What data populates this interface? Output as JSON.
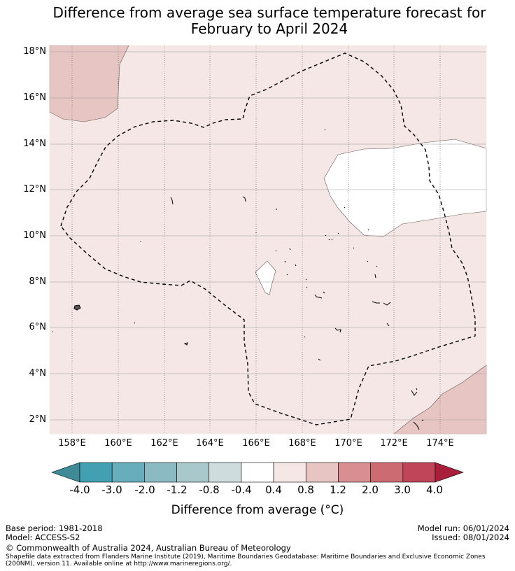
{
  "title": {
    "line1": "Difference from average sea surface temperature forecast for",
    "line2": "February to April 2024"
  },
  "map": {
    "lon_ticks": [
      "158°E",
      "160°E",
      "162°E",
      "164°E",
      "166°E",
      "168°E",
      "170°E",
      "172°E",
      "174°E"
    ],
    "lat_ticks": [
      "18°N",
      "16°N",
      "14°N",
      "12°N",
      "10°N",
      "8°N",
      "6°N",
      "4°N",
      "2°N"
    ],
    "background_class_color": "#f4e7e6",
    "boundary_style": "dashed"
  },
  "colorbar": {
    "tick_labels": [
      "-4.0",
      "-3.0",
      "-2.0",
      "-1.2",
      "-0.8",
      "-0.4",
      "0.4",
      "0.8",
      "1.2",
      "2.0",
      "3.0",
      "4.0"
    ],
    "colors": [
      "#43a0b2",
      "#67adbb",
      "#8bbac3",
      "#a9c8cc",
      "#cedcde",
      "#ffffff",
      "#f4e7e6",
      "#e7c5c2",
      "#d98e91",
      "#cd6b72",
      "#c14558"
    ],
    "under_color": "#3f8a97",
    "over_color": "#a81e3b",
    "title": "Difference from average (°C)"
  },
  "footer": {
    "base_period": "Base period: 1981-2018",
    "model": "Model: ACCESS-S2",
    "model_run": "Model run: 06/01/2024",
    "issued": "Issued: 08/01/2024",
    "copyright": "© Commonwealth of Australia 2024, Australian Bureau of Meteorology",
    "attribution": "Shapefile data extracted from Flanders Marine Institute (2019), Maritime Boundaries Geodatabase: Maritime Boundaries and Exclusive Economic Zones (200NM), version 11. Available online at http://www.marineregions.org/."
  }
}
